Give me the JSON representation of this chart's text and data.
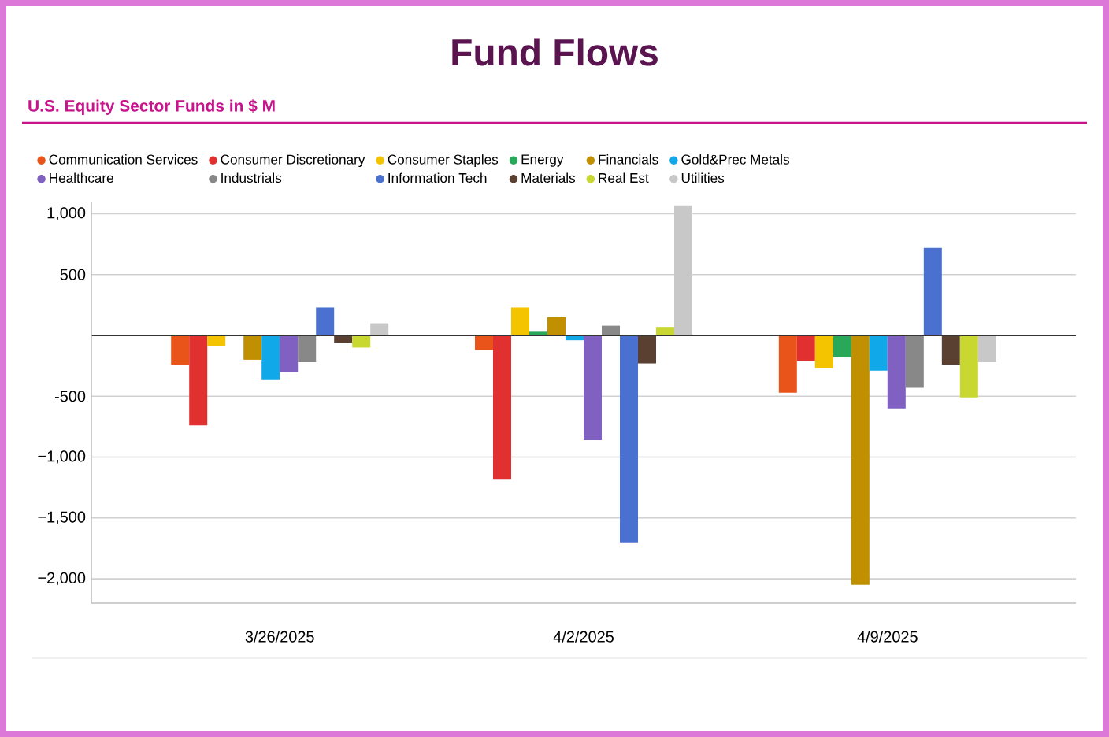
{
  "chart_data": {
    "type": "bar",
    "title": "Fund Flows",
    "subtitle": "U.S. Equity Sector Funds in $ M",
    "categories": [
      "3/26/2025",
      "4/2/2025",
      "4/9/2025"
    ],
    "series": [
      {
        "name": "Communication Services",
        "color": "#e8541a",
        "values": [
          -240,
          -120,
          -470
        ]
      },
      {
        "name": "Consumer Discretionary",
        "color": "#e03030",
        "values": [
          -740,
          -1180,
          -210
        ]
      },
      {
        "name": "Consumer Staples",
        "color": "#f5c400",
        "values": [
          -90,
          230,
          -270
        ]
      },
      {
        "name": "Energy",
        "color": "#2aa85a",
        "values": [
          0,
          30,
          -180
        ]
      },
      {
        "name": "Financials",
        "color": "#c09000",
        "values": [
          -200,
          150,
          -2050
        ]
      },
      {
        "name": "Gold&Prec Metals",
        "color": "#10a8e8",
        "values": [
          -360,
          -40,
          -290
        ]
      },
      {
        "name": "Healthcare",
        "color": "#8060c0",
        "values": [
          -300,
          -860,
          -600
        ]
      },
      {
        "name": "Industrials",
        "color": "#888888",
        "values": [
          -220,
          80,
          -430
        ]
      },
      {
        "name": "Information Tech",
        "color": "#4a70d0",
        "values": [
          230,
          -1700,
          720
        ]
      },
      {
        "name": "Materials",
        "color": "#5a4030",
        "values": [
          -60,
          -230,
          -240
        ]
      },
      {
        "name": "Real Est",
        "color": "#c8d830",
        "values": [
          -100,
          70,
          -510
        ]
      },
      {
        "name": "Utilities",
        "color": "#c8c8c8",
        "values": [
          100,
          1070,
          -220
        ]
      }
    ],
    "ylim": [
      -2200,
      1100
    ],
    "yticks": [
      {
        "value": -2000,
        "label": "−2,000"
      },
      {
        "value": -1500,
        "label": "−1,500"
      },
      {
        "value": -1000,
        "label": "−1,000"
      },
      -500,
      {
        "value": 0,
        "label": null
      },
      500,
      {
        "value": 1000,
        "label": "1,000"
      }
    ],
    "grid": "y",
    "legend": "top"
  }
}
